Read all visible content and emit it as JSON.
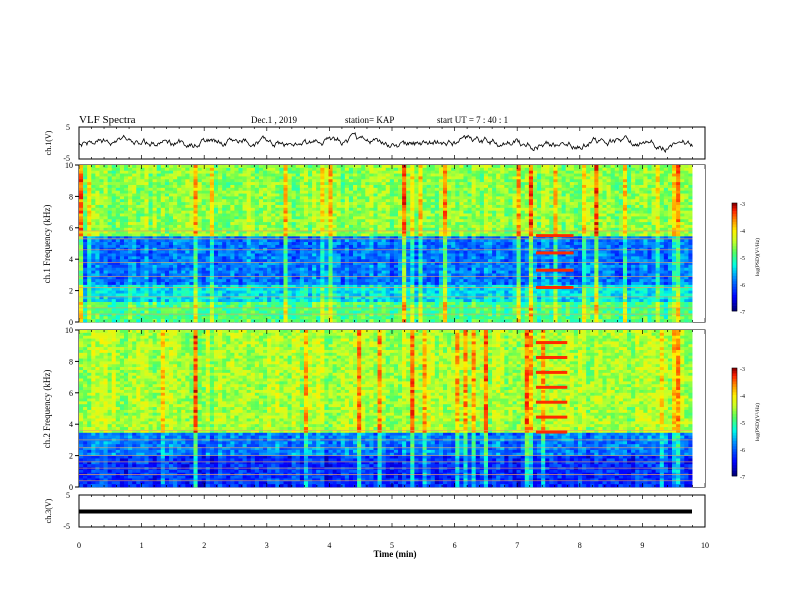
{
  "header": {
    "title": "VLF Spectra",
    "date": "Dec.1 , 2019",
    "station": "station= KAP",
    "start": "start  UT =   7 : 40 : 1"
  },
  "colorbar": {
    "label": "log(PSD)(V²/Hz)",
    "ticks": [
      "-3",
      "-4",
      "-5",
      "-6",
      "-7"
    ],
    "colors": [
      "#7a0000",
      "#ff0000",
      "#ff7f00",
      "#ffff00",
      "#7fff00",
      "#00ff7f",
      "#00ffff",
      "#007fff",
      "#0000ff",
      "#00007f"
    ]
  },
  "chart_data": [
    {
      "type": "line",
      "panel": "ch1-waveform",
      "ylabel": "ch.1(V)",
      "ylim": [
        -5,
        5
      ],
      "y_ticks": [
        "5",
        "-5"
      ],
      "xlim": [
        0,
        10
      ],
      "note_values": "noisy waveform fluctuating approximately between -2 and 2 V"
    },
    {
      "type": "heatmap",
      "panel": "ch1-spectrogram",
      "ylabel": "ch.1 Frequency (kHz)",
      "ylim": [
        0,
        10
      ],
      "y_ticks": [
        "0",
        "2",
        "4",
        "6",
        "8",
        "10"
      ],
      "xlim": [
        0,
        10
      ],
      "zlim": [
        -7,
        -3
      ],
      "horizontal_lines_khz": [
        0.5,
        0.9,
        1.6,
        2.2,
        2.9,
        3.8,
        4.6,
        5.3,
        5.8
      ],
      "burst_bands": [
        {
          "x": [
            7.3,
            7.9
          ],
          "y_khz": [
            2.2,
            5.5
          ]
        }
      ]
    },
    {
      "type": "heatmap",
      "panel": "ch2-spectrogram",
      "ylabel": "ch.2 Frequency (kHz)",
      "ylim": [
        0,
        10
      ],
      "y_ticks": [
        "0",
        "2",
        "4",
        "6",
        "8",
        "10"
      ],
      "xlim": [
        0,
        10
      ],
      "zlim": [
        -7,
        -3
      ],
      "horizontal_lines_khz": [
        0.4,
        0.8,
        1.2,
        1.6,
        2.0,
        2.5,
        3.0,
        3.6
      ],
      "burst_bands": [
        {
          "x": [
            7.3,
            7.8
          ],
          "y_khz": [
            3.5,
            9.2
          ]
        }
      ]
    },
    {
      "type": "line",
      "panel": "ch3-waveform",
      "ylabel": "ch.3(V)",
      "ylim": [
        -5,
        5
      ],
      "y_ticks": [
        "5",
        "-5"
      ],
      "xlim": [
        0,
        10
      ],
      "constant_value": 0
    }
  ],
  "xaxis": {
    "label": "Time (min)",
    "ticks": [
      "0",
      "1",
      "2",
      "3",
      "4",
      "5",
      "6",
      "7",
      "8",
      "9",
      "10"
    ]
  }
}
